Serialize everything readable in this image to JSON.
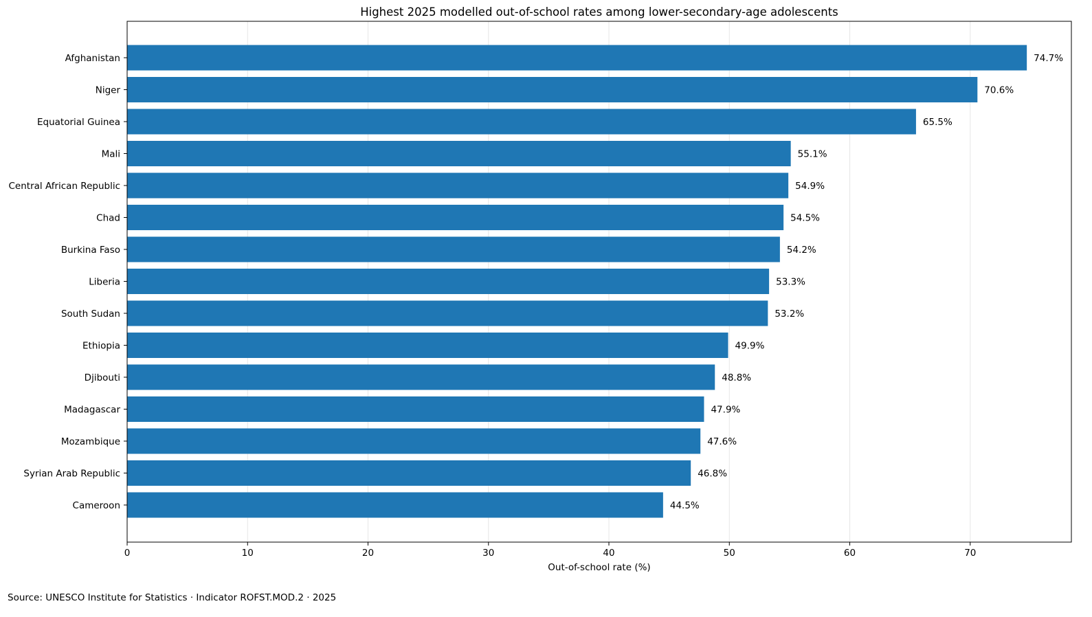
{
  "chart_data": {
    "type": "bar",
    "orientation": "horizontal",
    "title": "Highest 2025 modelled out-of-school rates among lower-secondary-age adolescents",
    "xlabel": "Out-of-school rate (%)",
    "ylabel": "",
    "categories": [
      "Afghanistan",
      "Niger",
      "Equatorial Guinea",
      "Mali",
      "Central African Republic",
      "Chad",
      "Burkina Faso",
      "Liberia",
      "South Sudan",
      "Ethiopia",
      "Djibouti",
      "Madagascar",
      "Mozambique",
      "Syrian Arab Republic",
      "Cameroon"
    ],
    "values": [
      74.7,
      70.6,
      65.5,
      55.1,
      54.9,
      54.5,
      54.2,
      53.3,
      53.2,
      49.9,
      48.8,
      47.9,
      47.6,
      46.8,
      44.5
    ],
    "data_labels": [
      "74.7%",
      "70.6%",
      "65.5%",
      "55.1%",
      "54.9%",
      "54.5%",
      "54.2%",
      "53.3%",
      "53.2%",
      "49.9%",
      "48.8%",
      "47.9%",
      "47.6%",
      "46.8%",
      "44.5%"
    ],
    "xlim": [
      0,
      78.4
    ],
    "xticks": [
      0,
      10,
      20,
      30,
      40,
      50,
      60,
      70
    ],
    "grid": "vertical",
    "bar_color": "#1f77b4",
    "grid_color": "#e6e6e6"
  },
  "source_note": "Source: UNESCO Institute for Statistics · Indicator ROFST.MOD.2 · 2025"
}
